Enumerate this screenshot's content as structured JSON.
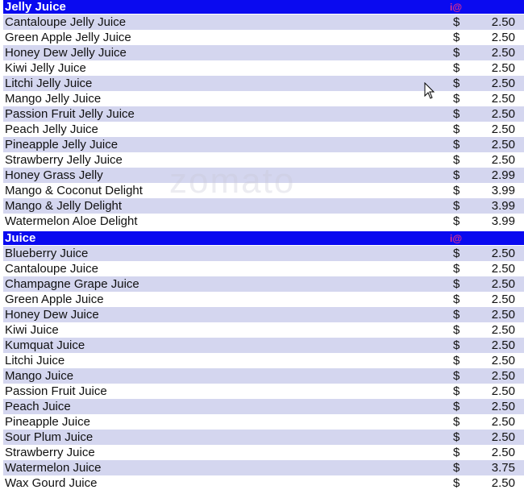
{
  "sections": [
    {
      "title": "Jelly Juice",
      "mark": "i@",
      "items": [
        {
          "name": "Cantaloupe Jelly Juice",
          "currency": "$",
          "price": "2.50"
        },
        {
          "name": "Green Apple Jelly Juice",
          "currency": "$",
          "price": "2.50"
        },
        {
          "name": "Honey Dew Jelly Juice",
          "currency": "$",
          "price": "2.50"
        },
        {
          "name": "Kiwi  Jelly Juice",
          "currency": "$",
          "price": "2.50"
        },
        {
          "name": "Litchi Jelly Juice",
          "currency": "$",
          "price": "2.50"
        },
        {
          "name": "Mango Jelly Juice",
          "currency": "$",
          "price": "2.50"
        },
        {
          "name": "Passion Fruit Jelly Juice",
          "currency": "$",
          "price": "2.50"
        },
        {
          "name": "Peach Jelly Juice",
          "currency": "$",
          "price": "2.50"
        },
        {
          "name": "Pineapple Jelly Juice",
          "currency": "$",
          "price": "2.50"
        },
        {
          "name": "Strawberry Jelly Juice",
          "currency": "$",
          "price": "2.50"
        },
        {
          "name": "Honey Grass Jelly",
          "currency": "$",
          "price": "2.99"
        },
        {
          "name": "Mango & Coconut Delight",
          "currency": "$",
          "price": "3.99"
        },
        {
          "name": "Mango & Jelly Delight",
          "currency": "$",
          "price": "3.99"
        },
        {
          "name": "Watermelon Aloe Delight",
          "currency": "$",
          "price": "3.99"
        }
      ]
    },
    {
      "title": "Juice",
      "mark": "i@",
      "items": [
        {
          "name": "Blueberry Juice",
          "currency": "$",
          "price": "2.50"
        },
        {
          "name": "Cantaloupe Juice",
          "currency": "$",
          "price": "2.50"
        },
        {
          "name": "Champagne Grape Juice",
          "currency": "$",
          "price": "2.50"
        },
        {
          "name": "Green Apple Juice",
          "currency": "$",
          "price": "2.50"
        },
        {
          "name": "Honey Dew Juice",
          "currency": "$",
          "price": "2.50"
        },
        {
          "name": "Kiwi Juice",
          "currency": "$",
          "price": "2.50"
        },
        {
          "name": "Kumquat Juice",
          "currency": "$",
          "price": "2.50"
        },
        {
          "name": "Litchi Juice",
          "currency": "$",
          "price": "2.50"
        },
        {
          "name": "Mango Juice",
          "currency": "$",
          "price": "2.50"
        },
        {
          "name": "Passion Fruit Juice",
          "currency": "$",
          "price": "2.50"
        },
        {
          "name": "Peach Juice",
          "currency": "$",
          "price": "2.50"
        },
        {
          "name": "Pineapple Juice",
          "currency": "$",
          "price": "2.50"
        },
        {
          "name": "Sour Plum Juice",
          "currency": "$",
          "price": "2.50"
        },
        {
          "name": "Strawberry Juice",
          "currency": "$",
          "price": "2.50"
        },
        {
          "name": "Watermelon Juice",
          "currency": "$",
          "price": "3.75"
        },
        {
          "name": "Wax Gourd Juice",
          "currency": "$",
          "price": "2.50"
        }
      ]
    }
  ],
  "watermark": "zomato",
  "colors": {
    "header": "#0a0af0",
    "row_alt": "#d4d6ef",
    "mark": "#e0308a"
  },
  "cursor_icon": "arrow-pointer-icon"
}
